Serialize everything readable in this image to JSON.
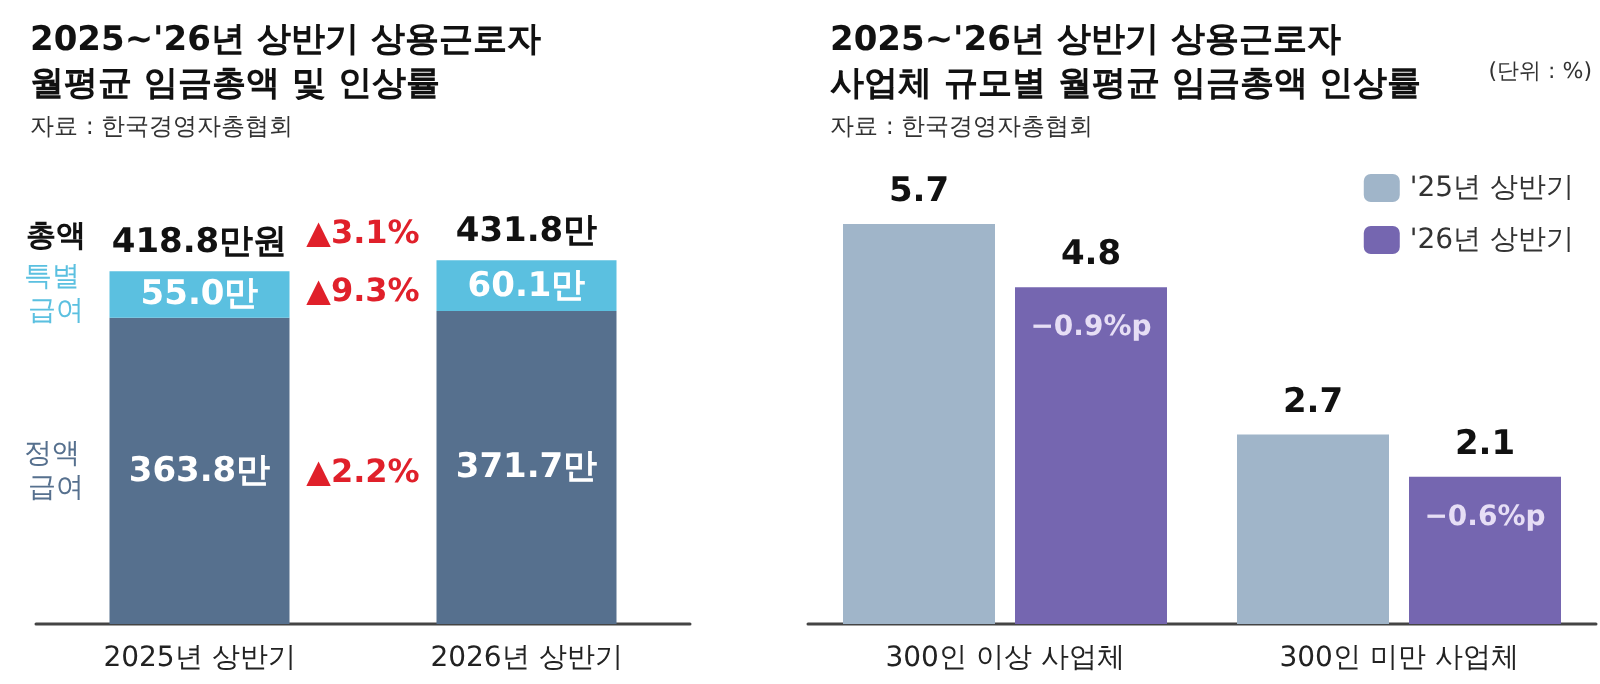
{
  "chart_data": [
    {
      "type": "bar",
      "title": "2025~'26년 상반기 상용근로자\n월평균 임금총액 및 인상률",
      "subtitle": "자료 : 한국경영자총협회",
      "categories": [
        "2025년 상반기",
        "2026년 상반기"
      ],
      "stacked": true,
      "tick_labels": "x",
      "grid": false,
      "legend": false,
      "series": [
        {
          "name": "정액 급여",
          "color": "#56708e",
          "values": [
            363.8,
            371.7
          ],
          "value_labels": [
            "363.8만",
            "371.7만"
          ]
        },
        {
          "name": "특별 급여",
          "color": "#5bc0e0",
          "values": [
            55.0,
            60.1
          ],
          "value_labels": [
            "55.0만",
            "60.1만"
          ]
        }
      ],
      "totals": [
        "418.8만원",
        "431.8만"
      ],
      "annotations": [
        "▲3.1%",
        "▲9.3%",
        "▲2.2%",
        "총액"
      ]
    },
    {
      "type": "bar",
      "title": "2025~'26년 상반기 상용근로자\n사업체 규모별 월평균 임금총액 인상률",
      "subtitle": "자료 : 한국경영자총협회",
      "categories": [
        "300인 이상 사업체",
        "300인 미만 사업체"
      ],
      "tick_labels": "x",
      "grid": false,
      "legend": "top right",
      "data_labels": true,
      "series": [
        {
          "name": "'25년 상반기",
          "color": "#a0b5c9",
          "values": [
            5.7,
            2.7
          ]
        },
        {
          "name": "'26년 상반기",
          "color": "#7566b0",
          "values": [
            4.8,
            2.1
          ]
        }
      ],
      "annotations": [
        "(단위 : %)",
        {
          "text": "−0.9%p",
          "x": "300인 이상 사업체",
          "y": 4.8
        },
        {
          "text": "−0.6%p",
          "x": "300인 미만 사업체",
          "y": 2.1
        }
      ]
    }
  ]
}
